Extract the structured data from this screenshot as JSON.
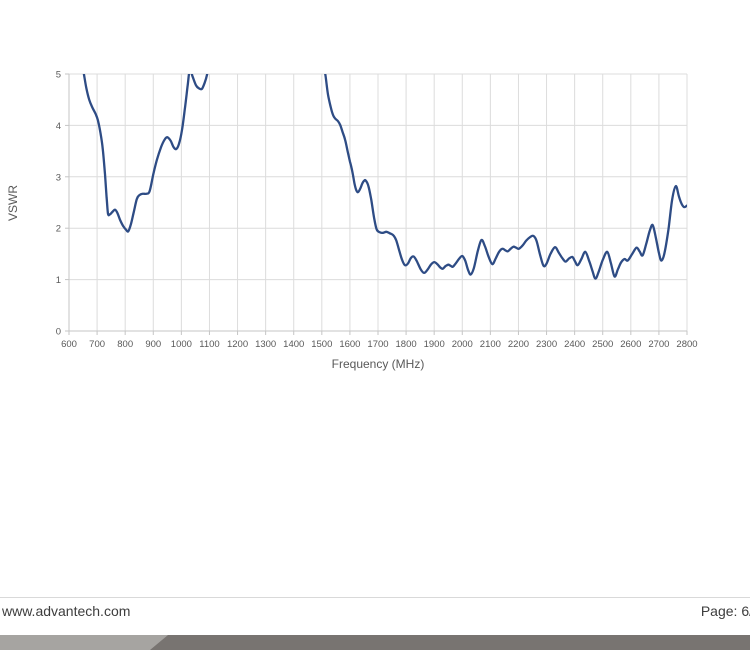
{
  "footer": {
    "website": "www.advantech.com",
    "page_label": "Page: 6/",
    "divider_color": "#d9d9d9",
    "bar_light_color": "#a6a4a1",
    "bar_dark_color": "#787471"
  },
  "chart_data": {
    "type": "line",
    "title": "",
    "xlabel": "Frequency (MHz)",
    "ylabel": "VSWR",
    "xlim": [
      600,
      2800
    ],
    "ylim": [
      0,
      5
    ],
    "grid": true,
    "legend": "none",
    "x_ticks": [
      600,
      700,
      800,
      900,
      1000,
      1100,
      1200,
      1300,
      1400,
      1500,
      1600,
      1700,
      1800,
      1900,
      2000,
      2100,
      2200,
      2300,
      2400,
      2500,
      2600,
      2700,
      2800
    ],
    "y_ticks": [
      0,
      1,
      2,
      3,
      4,
      5
    ],
    "line_color": "#2e4c85",
    "grid_color": "#dcdcdc",
    "axis_color": "#c5c5c5",
    "tick_label_color": "#595959",
    "note": "values above ylim max 5 are clipped at plot top",
    "series": [
      {
        "name": "VSWR",
        "points": [
          [
            648,
            5.12
          ],
          [
            653,
            5.0
          ],
          [
            662,
            4.72
          ],
          [
            672,
            4.5
          ],
          [
            683,
            4.35
          ],
          [
            695,
            4.22
          ],
          [
            703,
            4.1
          ],
          [
            712,
            3.85
          ],
          [
            720,
            3.55
          ],
          [
            728,
            3.05
          ],
          [
            734,
            2.6
          ],
          [
            739,
            2.28
          ],
          [
            746,
            2.27
          ],
          [
            755,
            2.32
          ],
          [
            764,
            2.36
          ],
          [
            772,
            2.3
          ],
          [
            782,
            2.16
          ],
          [
            793,
            2.04
          ],
          [
            803,
            1.97
          ],
          [
            811,
            1.94
          ],
          [
            820,
            2.07
          ],
          [
            830,
            2.3
          ],
          [
            841,
            2.56
          ],
          [
            850,
            2.64
          ],
          [
            862,
            2.67
          ],
          [
            875,
            2.67
          ],
          [
            887,
            2.72
          ],
          [
            900,
            3.05
          ],
          [
            913,
            3.33
          ],
          [
            928,
            3.58
          ],
          [
            940,
            3.72
          ],
          [
            950,
            3.77
          ],
          [
            962,
            3.7
          ],
          [
            972,
            3.58
          ],
          [
            982,
            3.54
          ],
          [
            992,
            3.65
          ],
          [
            1002,
            3.9
          ],
          [
            1012,
            4.3
          ],
          [
            1022,
            4.75
          ],
          [
            1030,
            5.08
          ],
          [
            1040,
            4.95
          ],
          [
            1052,
            4.78
          ],
          [
            1063,
            4.72
          ],
          [
            1073,
            4.71
          ],
          [
            1083,
            4.83
          ],
          [
            1092,
            5.0
          ],
          [
            1100,
            5.25
          ],
          [
            1140,
            5.9
          ],
          [
            1220,
            6.4
          ],
          [
            1320,
            6.5
          ],
          [
            1420,
            6.3
          ],
          [
            1480,
            5.7
          ],
          [
            1506,
            5.15
          ],
          [
            1513,
            4.97
          ],
          [
            1522,
            4.6
          ],
          [
            1532,
            4.35
          ],
          [
            1540,
            4.2
          ],
          [
            1548,
            4.13
          ],
          [
            1558,
            4.08
          ],
          [
            1566,
            4.0
          ],
          [
            1574,
            3.87
          ],
          [
            1583,
            3.72
          ],
          [
            1592,
            3.49
          ],
          [
            1600,
            3.3
          ],
          [
            1606,
            3.17
          ],
          [
            1612,
            3.0
          ],
          [
            1617,
            2.85
          ],
          [
            1622,
            2.75
          ],
          [
            1628,
            2.7
          ],
          [
            1636,
            2.76
          ],
          [
            1644,
            2.87
          ],
          [
            1650,
            2.92
          ],
          [
            1656,
            2.93
          ],
          [
            1666,
            2.82
          ],
          [
            1676,
            2.55
          ],
          [
            1686,
            2.2
          ],
          [
            1695,
            1.98
          ],
          [
            1706,
            1.92
          ],
          [
            1718,
            1.91
          ],
          [
            1730,
            1.93
          ],
          [
            1742,
            1.9
          ],
          [
            1755,
            1.86
          ],
          [
            1765,
            1.76
          ],
          [
            1776,
            1.56
          ],
          [
            1786,
            1.38
          ],
          [
            1796,
            1.28
          ],
          [
            1806,
            1.31
          ],
          [
            1817,
            1.42
          ],
          [
            1827,
            1.45
          ],
          [
            1838,
            1.36
          ],
          [
            1852,
            1.2
          ],
          [
            1864,
            1.13
          ],
          [
            1876,
            1.19
          ],
          [
            1888,
            1.29
          ],
          [
            1900,
            1.34
          ],
          [
            1911,
            1.3
          ],
          [
            1921,
            1.24
          ],
          [
            1930,
            1.21
          ],
          [
            1940,
            1.26
          ],
          [
            1950,
            1.29
          ],
          [
            1958,
            1.27
          ],
          [
            1966,
            1.25
          ],
          [
            1976,
            1.31
          ],
          [
            1988,
            1.4
          ],
          [
            2000,
            1.46
          ],
          [
            2011,
            1.36
          ],
          [
            2021,
            1.18
          ],
          [
            2030,
            1.1
          ],
          [
            2041,
            1.22
          ],
          [
            2055,
            1.55
          ],
          [
            2068,
            1.77
          ],
          [
            2080,
            1.66
          ],
          [
            2094,
            1.44
          ],
          [
            2107,
            1.3
          ],
          [
            2119,
            1.41
          ],
          [
            2131,
            1.54
          ],
          [
            2143,
            1.6
          ],
          [
            2153,
            1.57
          ],
          [
            2162,
            1.55
          ],
          [
            2172,
            1.6
          ],
          [
            2182,
            1.64
          ],
          [
            2192,
            1.62
          ],
          [
            2201,
            1.6
          ],
          [
            2214,
            1.66
          ],
          [
            2228,
            1.76
          ],
          [
            2242,
            1.83
          ],
          [
            2253,
            1.85
          ],
          [
            2264,
            1.76
          ],
          [
            2277,
            1.48
          ],
          [
            2289,
            1.27
          ],
          [
            2300,
            1.31
          ],
          [
            2314,
            1.5
          ],
          [
            2330,
            1.63
          ],
          [
            2344,
            1.52
          ],
          [
            2357,
            1.41
          ],
          [
            2368,
            1.35
          ],
          [
            2380,
            1.41
          ],
          [
            2392,
            1.44
          ],
          [
            2401,
            1.36
          ],
          [
            2411,
            1.28
          ],
          [
            2424,
            1.4
          ],
          [
            2438,
            1.54
          ],
          [
            2452,
            1.36
          ],
          [
            2464,
            1.16
          ],
          [
            2474,
            1.02
          ],
          [
            2486,
            1.16
          ],
          [
            2500,
            1.38
          ],
          [
            2516,
            1.54
          ],
          [
            2529,
            1.32
          ],
          [
            2542,
            1.06
          ],
          [
            2554,
            1.2
          ],
          [
            2566,
            1.34
          ],
          [
            2578,
            1.4
          ],
          [
            2589,
            1.37
          ],
          [
            2604,
            1.49
          ],
          [
            2620,
            1.62
          ],
          [
            2631,
            1.55
          ],
          [
            2642,
            1.47
          ],
          [
            2655,
            1.7
          ],
          [
            2668,
            1.96
          ],
          [
            2678,
            2.06
          ],
          [
            2689,
            1.82
          ],
          [
            2700,
            1.52
          ],
          [
            2709,
            1.37
          ],
          [
            2720,
            1.52
          ],
          [
            2734,
            1.98
          ],
          [
            2747,
            2.55
          ],
          [
            2760,
            2.82
          ],
          [
            2771,
            2.62
          ],
          [
            2781,
            2.47
          ],
          [
            2790,
            2.41
          ],
          [
            2800,
            2.44
          ]
        ]
      }
    ]
  }
}
